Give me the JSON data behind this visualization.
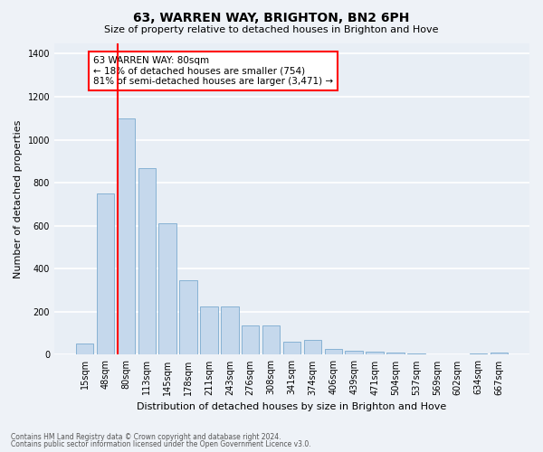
{
  "title": "63, WARREN WAY, BRIGHTON, BN2 6PH",
  "subtitle": "Size of property relative to detached houses in Brighton and Hove",
  "xlabel": "Distribution of detached houses by size in Brighton and Hove",
  "ylabel": "Number of detached properties",
  "categories": [
    "15sqm",
    "48sqm",
    "80sqm",
    "113sqm",
    "145sqm",
    "178sqm",
    "211sqm",
    "243sqm",
    "276sqm",
    "308sqm",
    "341sqm",
    "374sqm",
    "406sqm",
    "439sqm",
    "471sqm",
    "504sqm",
    "537sqm",
    "569sqm",
    "602sqm",
    "634sqm",
    "667sqm"
  ],
  "values": [
    52,
    750,
    1100,
    868,
    612,
    348,
    224,
    224,
    135,
    135,
    62,
    68,
    28,
    20,
    15,
    10,
    5,
    2,
    0,
    5,
    12
  ],
  "bar_color": "#c5d8ec",
  "bar_edge_color": "#7aaacf",
  "vline_x_index": 2,
  "vline_color": "red",
  "annotation_text": "63 WARREN WAY: 80sqm\n← 18% of detached houses are smaller (754)\n81% of semi-detached houses are larger (3,471) →",
  "annotation_box_color": "white",
  "annotation_box_edgecolor": "red",
  "ylim": [
    0,
    1450
  ],
  "yticks": [
    0,
    200,
    400,
    600,
    800,
    1000,
    1200,
    1400
  ],
  "footer1": "Contains HM Land Registry data © Crown copyright and database right 2024.",
  "footer2": "Contains public sector information licensed under the Open Government Licence v3.0.",
  "bg_color": "#eef2f7",
  "plot_bg_color": "#e8eef5",
  "grid_color": "white",
  "title_fontsize": 10,
  "subtitle_fontsize": 8,
  "ylabel_fontsize": 8,
  "xlabel_fontsize": 8,
  "tick_fontsize": 7,
  "annotation_fontsize": 7.5
}
